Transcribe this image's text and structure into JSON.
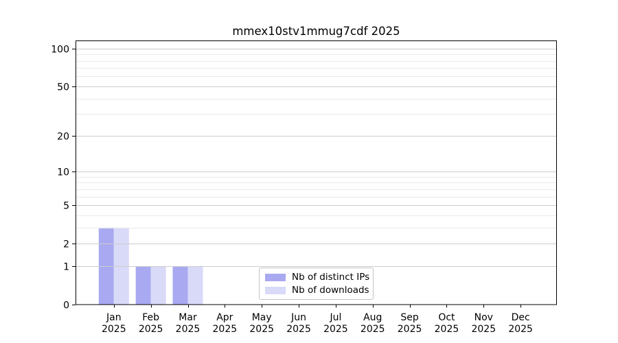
{
  "chart_data": {
    "type": "bar",
    "title": "mmex10stv1mmug7cdf 2025",
    "categories": [
      "Jan",
      "Feb",
      "Mar",
      "Apr",
      "May",
      "Jun",
      "Jul",
      "Aug",
      "Sep",
      "Oct",
      "Nov",
      "Dec"
    ],
    "x_tick_year": "2025",
    "series": [
      {
        "name": "Nb of distinct IPs",
        "color": "#a9a9f1",
        "values": [
          3,
          1,
          1,
          0,
          0,
          0,
          0,
          0,
          0,
          0,
          0,
          0
        ]
      },
      {
        "name": "Nb of downloads",
        "color": "#d9d9f8",
        "values": [
          3,
          1,
          1,
          0,
          0,
          0,
          0,
          0,
          0,
          0,
          0,
          0
        ]
      }
    ],
    "yscale": "log1p",
    "ylim": [
      0,
      115
    ],
    "yticks": [
      0,
      1,
      2,
      5,
      10,
      20,
      50,
      100
    ],
    "grid": {
      "axis": "y",
      "minor_values": [
        3,
        4,
        6,
        7,
        8,
        9,
        30,
        40,
        60,
        70,
        80,
        90
      ],
      "labeled_line_color": "#cccccc",
      "minor_line_color": "#eaeaea"
    },
    "legend": {
      "position": "lower-center-inside"
    },
    "axis_color": "#000000",
    "background": "#ffffff"
  }
}
